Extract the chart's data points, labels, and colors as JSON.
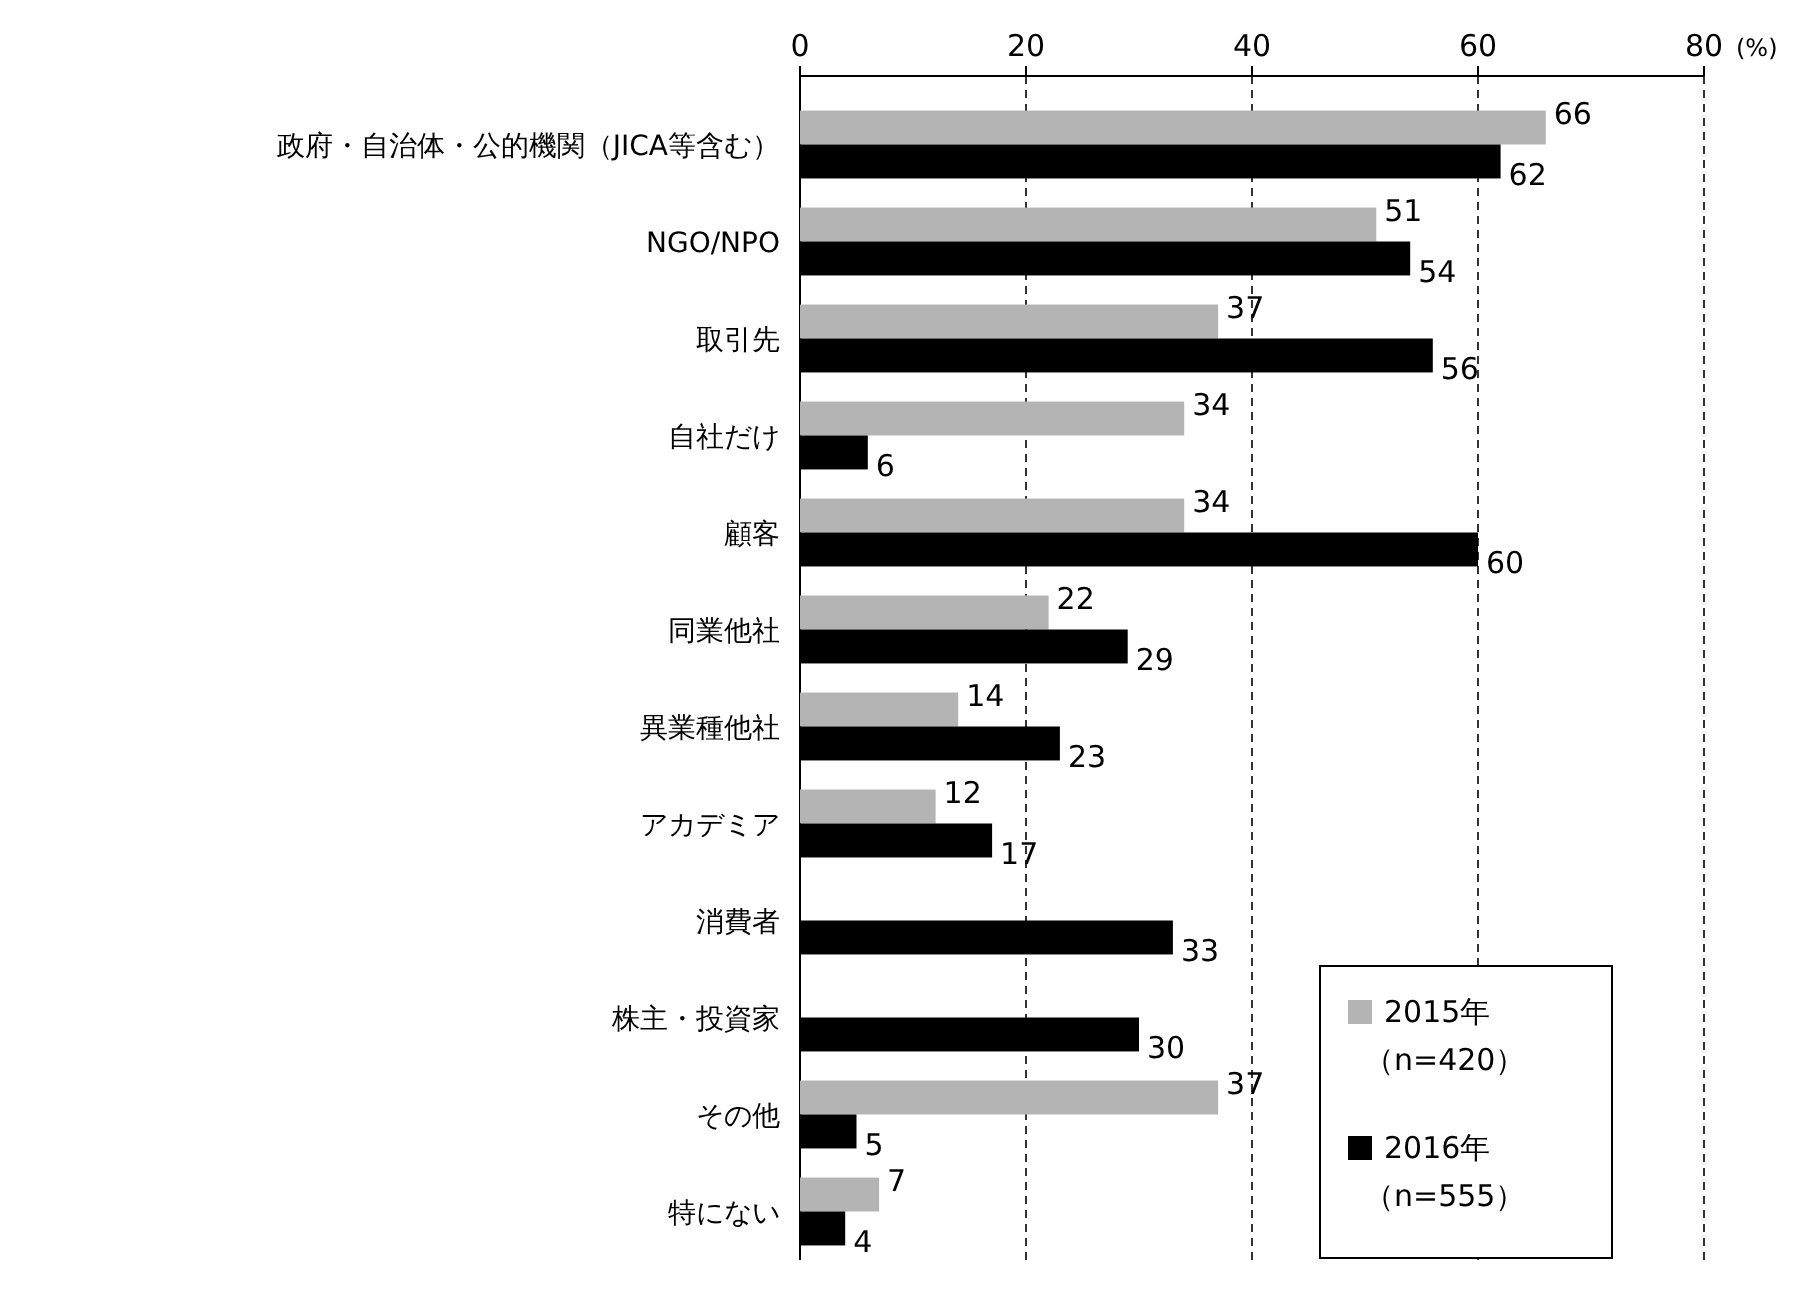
{
  "chart_data": {
    "type": "bar",
    "orientation": "horizontal",
    "xlabel": "(%)",
    "categories": [
      "政府・自治体・公的機関（JICA等含む）",
      "NGO/NPO",
      "取引先",
      "自社だけ",
      "顧客",
      "同業他社",
      "異業種他社",
      "アカデミア",
      "消費者",
      "株主・投資家",
      "その他",
      "特にない"
    ],
    "series": [
      {
        "name": "2015年（n=420）",
        "color": "#b4b4b4",
        "values": [
          66,
          51,
          37,
          34,
          34,
          22,
          14,
          12,
          null,
          null,
          37,
          7
        ]
      },
      {
        "name": "2016年（n=555）",
        "color": "#000000",
        "values": [
          62,
          54,
          56,
          6,
          60,
          29,
          23,
          17,
          33,
          30,
          5,
          4
        ]
      }
    ],
    "xlim": [
      0,
      80
    ],
    "xticks": [
      0,
      20,
      40,
      60,
      80
    ],
    "grid": "x",
    "legend": "bottom right",
    "data_labels": true
  }
}
